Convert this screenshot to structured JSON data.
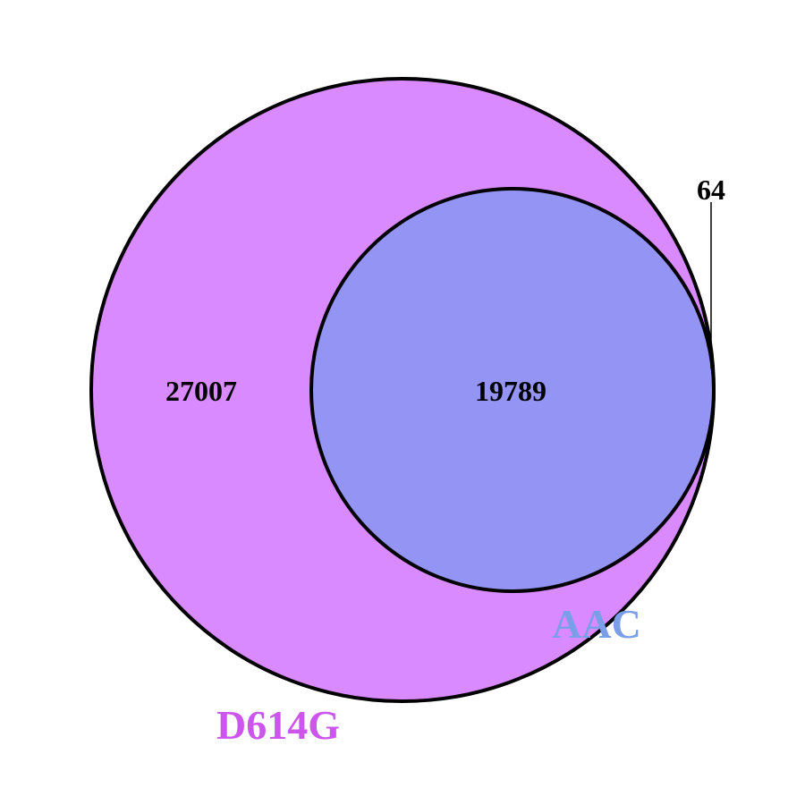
{
  "chart_data": {
    "type": "venn",
    "sets": [
      {
        "key": "d614g",
        "label": "D614G",
        "color": "#d98aff",
        "label_color": "#cc55ee"
      },
      {
        "key": "aac",
        "label": "AAC",
        "color": "#9494f5",
        "label_color": "#7a9ee8"
      }
    ],
    "regions": {
      "d614g_only": "27007",
      "intersection": "19789",
      "aac_only": "64"
    },
    "outline_color": "#000000"
  }
}
